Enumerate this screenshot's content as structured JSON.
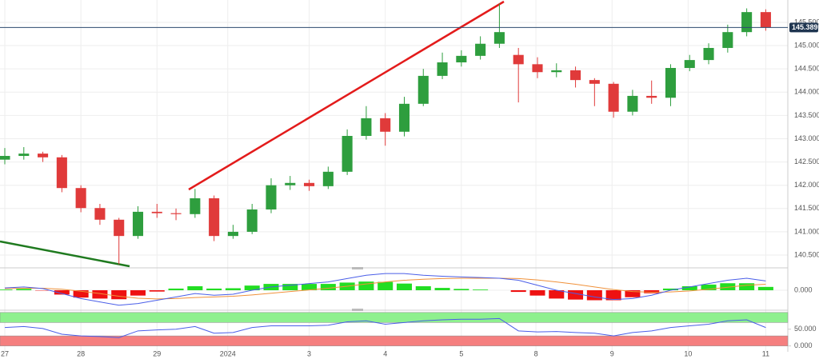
{
  "chart_data": [
    {
      "type": "candlestick",
      "x": [
        0,
        0.25,
        0.5,
        0.75,
        1,
        1.25,
        1.5,
        1.75,
        2,
        2.25,
        2.5,
        2.75,
        3,
        3.25,
        3.5,
        3.75,
        4,
        4.25,
        4.5,
        4.75,
        5,
        5.25,
        5.5,
        5.75,
        6,
        6.25,
        6.5,
        6.75,
        7,
        7.25,
        7.5,
        7.75,
        8,
        8.25,
        8.5,
        8.75,
        9,
        9.25,
        9.5,
        9.75,
        10
      ],
      "open": [
        142.55,
        142.63,
        142.68,
        142.6,
        141.94,
        141.51,
        141.26,
        140.91,
        141.43,
        141.4,
        141.38,
        141.72,
        140.91,
        141.0,
        141.48,
        142.0,
        142.05,
        141.98,
        142.29,
        143.06,
        143.44,
        143.15,
        143.75,
        144.35,
        144.64,
        144.78,
        145.04,
        144.8,
        144.6,
        144.43,
        144.47,
        144.26,
        144.18,
        143.58,
        143.92,
        143.88,
        144.52,
        144.69,
        144.95,
        145.29,
        145.72
      ],
      "high": [
        142.8,
        142.82,
        142.72,
        142.65,
        142.0,
        141.6,
        141.3,
        141.55,
        141.6,
        141.5,
        141.92,
        141.78,
        141.15,
        141.6,
        142.15,
        142.2,
        142.12,
        142.4,
        143.2,
        143.7,
        143.55,
        143.9,
        144.5,
        144.85,
        144.9,
        145.2,
        145.9,
        144.95,
        144.75,
        144.62,
        144.55,
        144.3,
        144.22,
        144.05,
        144.25,
        144.6,
        144.8,
        145.05,
        145.45,
        145.8,
        145.78
      ],
      "low": [
        142.45,
        142.55,
        142.5,
        141.85,
        141.42,
        141.15,
        140.3,
        140.85,
        141.3,
        141.25,
        141.3,
        140.8,
        140.85,
        140.95,
        141.4,
        141.9,
        141.88,
        141.92,
        142.22,
        142.98,
        142.85,
        143.05,
        143.7,
        144.28,
        144.55,
        144.7,
        144.95,
        143.78,
        144.3,
        144.32,
        144.1,
        143.7,
        143.45,
        143.5,
        143.75,
        143.7,
        144.45,
        144.6,
        144.85,
        145.2,
        145.32
      ],
      "close": [
        142.63,
        142.68,
        142.6,
        141.94,
        141.51,
        141.26,
        140.91,
        141.43,
        141.4,
        141.38,
        141.72,
        140.91,
        141.0,
        141.48,
        142.0,
        142.05,
        141.98,
        142.29,
        143.06,
        143.44,
        143.15,
        143.75,
        144.35,
        144.64,
        144.78,
        145.04,
        145.29,
        144.6,
        144.43,
        144.47,
        144.26,
        144.18,
        143.58,
        143.92,
        143.88,
        144.52,
        144.69,
        144.95,
        145.29,
        145.72,
        145.39
      ],
      "up_color": "#2e9e3e",
      "down_color": "#e03a3a",
      "xlim": [
        -0.063,
        10.29
      ],
      "xticks": [
        {
          "value": 0,
          "label": "27"
        },
        {
          "value": 1,
          "label": "28"
        },
        {
          "value": 2,
          "label": "29"
        },
        {
          "value": 2.93,
          "label": "2024"
        },
        {
          "value": 4,
          "label": "3"
        },
        {
          "value": 5,
          "label": "4"
        },
        {
          "value": 6,
          "label": "5"
        },
        {
          "value": 6.98,
          "label": "8"
        },
        {
          "value": 7.98,
          "label": "9"
        },
        {
          "value": 8.98,
          "label": "10"
        },
        {
          "value": 10,
          "label": "11"
        }
      ],
      "ylim": [
        140.26,
        145.98
      ],
      "yticks": [
        {
          "value": 140.5,
          "label": "140.500"
        },
        {
          "value": 141,
          "label": "141.000"
        },
        {
          "value": 141.5,
          "label": "141.500"
        },
        {
          "value": 142,
          "label": "142.000"
        },
        {
          "value": 142.5,
          "label": "142.500"
        },
        {
          "value": 143,
          "label": "143.000"
        },
        {
          "value": 143.5,
          "label": "143.500"
        },
        {
          "value": 144,
          "label": "144.000"
        },
        {
          "value": 144.5,
          "label": "144.500"
        },
        {
          "value": 145,
          "label": "145.000"
        },
        {
          "value": 145.5,
          "label": "145.500"
        }
      ],
      "last_price": 145.389,
      "grid": true
    },
    {
      "type": "macd",
      "macd": [
        0.07,
        0.1,
        0.05,
        -0.1,
        -0.25,
        -0.35,
        -0.45,
        -0.4,
        -0.3,
        -0.2,
        -0.1,
        -0.15,
        -0.12,
        0.0,
        0.1,
        0.15,
        0.2,
        0.25,
        0.35,
        0.45,
        0.5,
        0.5,
        0.45,
        0.42,
        0.4,
        0.38,
        0.36,
        0.3,
        0.15,
        0.0,
        -0.1,
        -0.2,
        -0.28,
        -0.25,
        -0.15,
        0.0,
        0.1,
        0.2,
        0.3,
        0.36,
        0.28
      ],
      "signal": [
        0.05,
        0.06,
        0.06,
        0.03,
        -0.03,
        -0.1,
        -0.18,
        -0.24,
        -0.26,
        -0.25,
        -0.22,
        -0.2,
        -0.18,
        -0.14,
        -0.09,
        -0.04,
        0.01,
        0.06,
        0.12,
        0.19,
        0.25,
        0.3,
        0.33,
        0.35,
        0.36,
        0.36,
        0.36,
        0.35,
        0.31,
        0.25,
        0.18,
        0.1,
        0.02,
        -0.04,
        -0.06,
        -0.05,
        -0.02,
        0.03,
        0.09,
        0.15,
        0.18
      ],
      "histogram": [
        0.02,
        0.04,
        -0.01,
        -0.13,
        -0.22,
        -0.25,
        -0.27,
        -0.16,
        -0.04,
        0.05,
        0.12,
        0.05,
        0.06,
        0.14,
        0.19,
        0.19,
        0.19,
        0.19,
        0.23,
        0.26,
        0.25,
        0.2,
        0.12,
        0.07,
        0.04,
        0.02,
        0,
        -0.05,
        -0.16,
        -0.25,
        -0.28,
        -0.3,
        -0.3,
        -0.21,
        -0.09,
        0.05,
        0.12,
        0.17,
        0.21,
        0.21,
        0.1
      ],
      "macd_color": "#4a5ee8",
      "signal_color": "#f0913a",
      "up_color": "#22dd22",
      "down_color": "#ee1111",
      "ylim": [
        -0.6,
        0.6
      ],
      "yticks": [
        {
          "value": 0,
          "label": "0.000"
        }
      ]
    },
    {
      "type": "rsi",
      "values": [
        55,
        58,
        52,
        35,
        30,
        28,
        25,
        45,
        48,
        50,
        58,
        38,
        40,
        55,
        60,
        60,
        60,
        62,
        72,
        75,
        65,
        70,
        75,
        78,
        80,
        80,
        82,
        45,
        42,
        43,
        40,
        38,
        30,
        40,
        45,
        55,
        60,
        65,
        75,
        78,
        55
      ],
      "color": "#4a5ee8",
      "bands": [
        {
          "from": 70,
          "to": 100,
          "color": "#8ef08e"
        },
        {
          "from": 0,
          "to": 30,
          "color": "#f57f7f"
        }
      ],
      "ylim": [
        -20,
        102
      ],
      "yticks": [
        {
          "value": 50,
          "label": "50.000"
        },
        {
          "value": 0,
          "label": "0.000"
        }
      ]
    }
  ]
}
